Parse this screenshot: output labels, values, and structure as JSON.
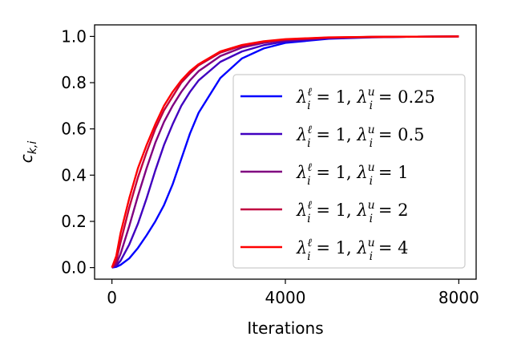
{
  "chart_data": {
    "type": "line",
    "xlabel": "Iterations",
    "ylabel": "c_{k,i}",
    "xlim": [
      -400,
      8400
    ],
    "ylim": [
      -0.05,
      1.05
    ],
    "xticks": [
      0,
      4000,
      8000
    ],
    "xtick_labels": [
      "0",
      "4000",
      "8000"
    ],
    "yticks": [
      0.0,
      0.2,
      0.4,
      0.6,
      0.8,
      1.0
    ],
    "ytick_labels": [
      "0.0",
      "0.2",
      "0.4",
      "0.6",
      "0.8",
      "1.0"
    ],
    "grid": false,
    "legend_position": "right",
    "x": [
      0,
      100,
      200,
      400,
      600,
      800,
      1000,
      1200,
      1400,
      1600,
      1800,
      2000,
      2500,
      3000,
      3500,
      4000,
      5000,
      6000,
      7000,
      8000
    ],
    "series": [
      {
        "name": "λ_i^ℓ = 1, λ_i^u = 0.25",
        "color": "#0000ff",
        "values": [
          0.0,
          0.003,
          0.012,
          0.04,
          0.085,
          0.14,
          0.2,
          0.27,
          0.36,
          0.47,
          0.58,
          0.67,
          0.82,
          0.905,
          0.948,
          0.972,
          0.99,
          0.996,
          0.999,
          1.0
        ]
      },
      {
        "name": "λ_i^ℓ = 1, λ_i^u = 0.5",
        "color": "#4000c0",
        "values": [
          0.0,
          0.008,
          0.03,
          0.1,
          0.19,
          0.3,
          0.42,
          0.53,
          0.62,
          0.7,
          0.76,
          0.81,
          0.89,
          0.935,
          0.962,
          0.978,
          0.992,
          0.997,
          0.999,
          1.0
        ]
      },
      {
        "name": "λ_i^ℓ = 1, λ_i^u = 1",
        "color": "#800080",
        "values": [
          0.0,
          0.015,
          0.06,
          0.18,
          0.31,
          0.43,
          0.54,
          0.63,
          0.7,
          0.76,
          0.81,
          0.85,
          0.915,
          0.952,
          0.972,
          0.984,
          0.994,
          0.998,
          0.999,
          1.0
        ]
      },
      {
        "name": "λ_i^ℓ = 1, λ_i^u = 2",
        "color": "#c00040",
        "values": [
          0.0,
          0.03,
          0.11,
          0.26,
          0.39,
          0.5,
          0.6,
          0.68,
          0.74,
          0.8,
          0.84,
          0.875,
          0.93,
          0.96,
          0.977,
          0.987,
          0.995,
          0.998,
          0.999,
          1.0
        ]
      },
      {
        "name": "λ_i^ℓ = 1, λ_i^u = 4",
        "color": "#ff0000",
        "values": [
          0.0,
          0.05,
          0.15,
          0.3,
          0.43,
          0.53,
          0.62,
          0.7,
          0.76,
          0.81,
          0.85,
          0.88,
          0.935,
          0.963,
          0.979,
          0.988,
          0.996,
          0.998,
          0.999,
          1.0
        ]
      }
    ]
  }
}
